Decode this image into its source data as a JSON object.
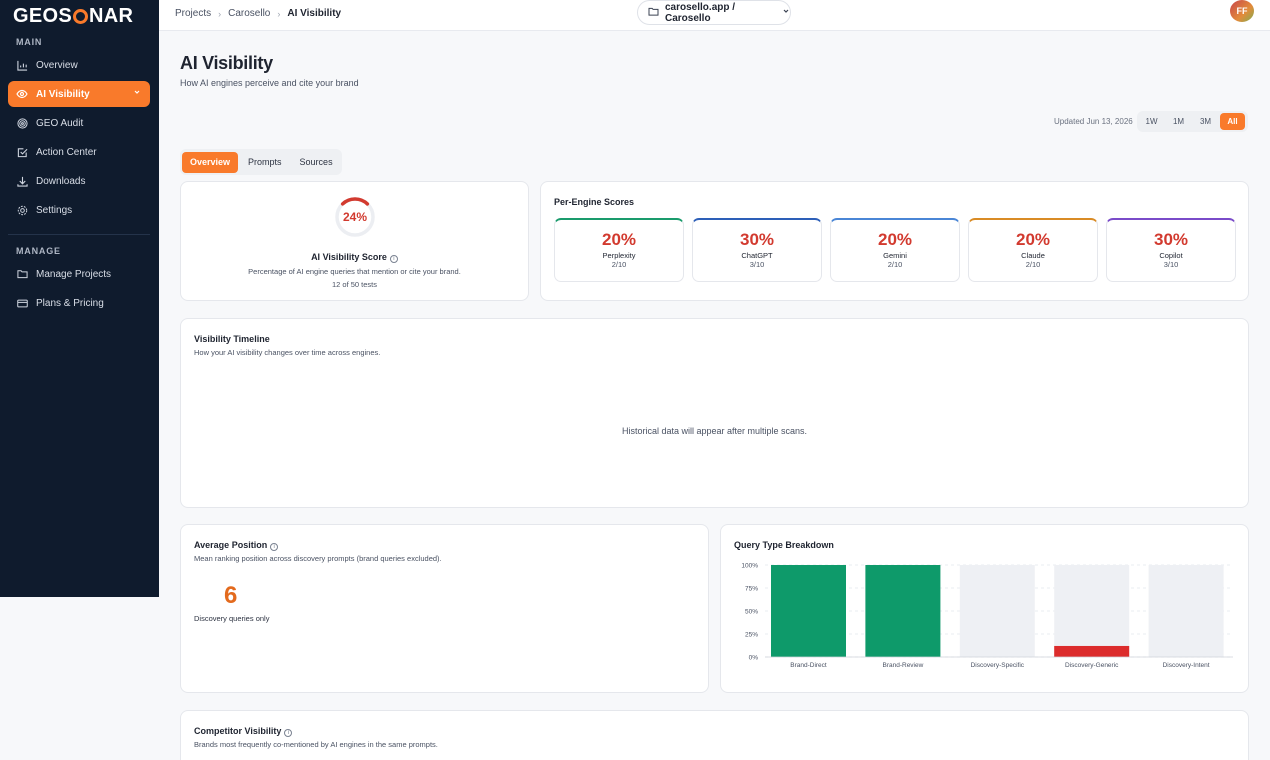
{
  "sidebar": {
    "logo_pre": "GEOS",
    "logo_post": "NAR",
    "main_label": "MAIN",
    "manage_label": "MANAGE",
    "items": [
      {
        "label": "Overview",
        "icon": "bar-chart-icon"
      },
      {
        "label": "AI Visibility",
        "icon": "eye-icon",
        "active": true
      },
      {
        "label": "GEO Audit",
        "icon": "target-icon"
      },
      {
        "label": "Action Center",
        "icon": "check-square-icon"
      },
      {
        "label": "Downloads",
        "icon": "download-icon"
      },
      {
        "label": "Settings",
        "icon": "gear-icon"
      }
    ],
    "manage_items": [
      {
        "label": "Manage Projects",
        "icon": "folder-icon"
      },
      {
        "label": "Plans & Pricing",
        "icon": "credit-card-icon"
      }
    ]
  },
  "topbar": {
    "crumbs": [
      "Projects",
      "Carosello",
      "AI Visibility"
    ],
    "project": "carosello.app / Carosello",
    "avatar": "FF"
  },
  "header": {
    "title": "AI Visibility",
    "subtitle": "How AI engines perceive and cite your brand",
    "updated": "Updated Jun 13, 2026",
    "ranges": [
      "1W",
      "1M",
      "3M",
      "All"
    ],
    "active_range": "All"
  },
  "tabs": [
    "Overview",
    "Prompts",
    "Sources"
  ],
  "score_card": {
    "value": "24%",
    "fraction": 0.24,
    "title": "AI Visibility Score",
    "desc": "Percentage of AI engine queries that mention or cite your brand.",
    "tests": "12 of 50 tests"
  },
  "engines_card": {
    "title": "Per-Engine Scores",
    "engines": [
      {
        "name": "Perplexity",
        "pct": "20%",
        "frac": "2/10",
        "color": "#1a9b6c"
      },
      {
        "name": "ChatGPT",
        "pct": "30%",
        "frac": "3/10",
        "color": "#2d5fb8"
      },
      {
        "name": "Gemini",
        "pct": "20%",
        "frac": "2/10",
        "color": "#4a86d6"
      },
      {
        "name": "Claude",
        "pct": "20%",
        "frac": "2/10",
        "color": "#d98b25"
      },
      {
        "name": "Copilot",
        "pct": "30%",
        "frac": "3/10",
        "color": "#7a4bc9"
      }
    ]
  },
  "timeline": {
    "title": "Visibility Timeline",
    "subtitle": "How your AI visibility changes over time across engines.",
    "empty": "Historical data will appear after multiple scans."
  },
  "avg_position": {
    "title": "Average Position",
    "subtitle": "Mean ranking position across discovery prompts (brand queries excluded).",
    "value": "6",
    "caption": "Discovery queries only"
  },
  "competitor": {
    "title": "Competitor Visibility",
    "subtitle": "Brands most frequently co-mentioned by AI engines in the same prompts."
  },
  "chart_data": {
    "type": "bar",
    "title": "Query Type Breakdown",
    "categories": [
      "Brand-Direct",
      "Brand-Review",
      "Discovery-Specific",
      "Discovery-Generic",
      "Discovery-Intent"
    ],
    "values": [
      100,
      100,
      0,
      12,
      0
    ],
    "colors": [
      "#0e9a6a",
      "#0e9a6a",
      "#0e9a6a",
      "#dc2c2c",
      "#0e9a6a"
    ],
    "ylim": [
      0,
      100
    ],
    "yticks": [
      "100%",
      "75%",
      "50%",
      "25%",
      "0%"
    ],
    "grid": true
  }
}
